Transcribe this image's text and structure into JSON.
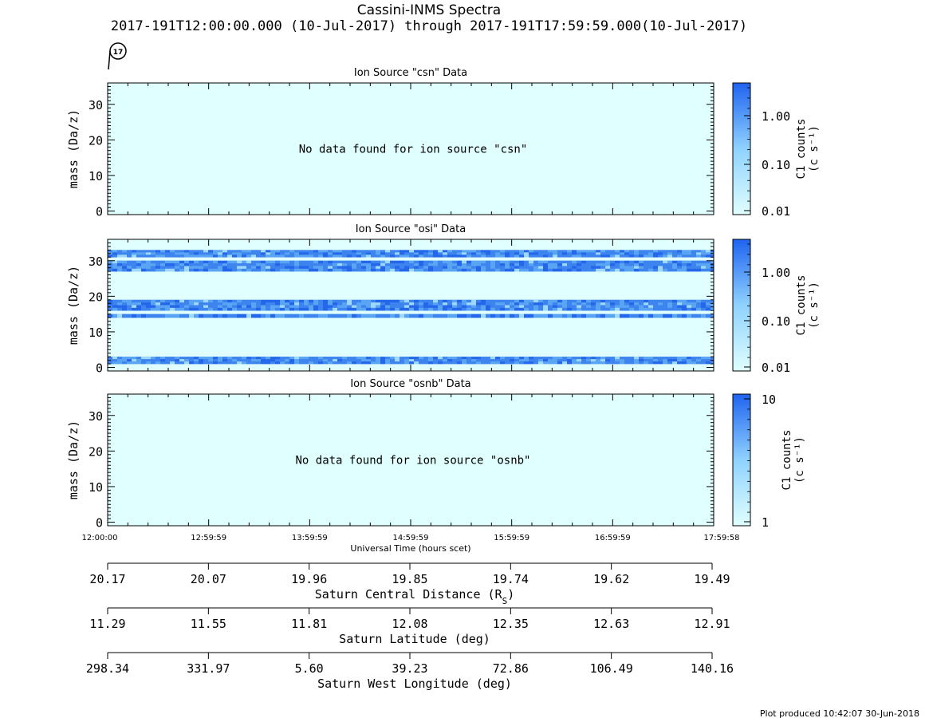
{
  "header": {
    "title": "Cassini-INMS Spectra",
    "subtitle": "2017-191T12:00:00.000 (10-Jul-2017) through 2017-191T17:59:59.000(10-Jul-2017)",
    "rev_badge": "17"
  },
  "chart_data": [
    {
      "type": "heatmap",
      "title": "Ion Source \"csn\" Data",
      "ylabel": "mass (Da/z)",
      "ylim": [
        -1,
        36
      ],
      "y_ticks": [
        "0",
        "10",
        "20",
        "30"
      ],
      "message": "No data found for ion source \"csn\"",
      "bands": [],
      "colorbar": {
        "label": "C1 counts",
        "unit": "(c s⁻¹)",
        "scale": "log",
        "ticks": [
          "1.00",
          "0.10",
          "0.01"
        ]
      }
    },
    {
      "type": "heatmap",
      "title": "Ion Source \"osi\" Data",
      "ylabel": "mass (Da/z)",
      "ylim": [
        -1,
        36
      ],
      "y_ticks": [
        "0",
        "10",
        "20",
        "30"
      ],
      "message": "",
      "bands": [
        [
          1,
          3
        ],
        [
          14,
          15
        ],
        [
          16,
          19
        ],
        [
          27,
          30
        ],
        [
          31,
          33
        ]
      ],
      "colorbar": {
        "label": "C1 counts",
        "unit": "(c s⁻¹)",
        "scale": "log",
        "ticks": [
          "1.00",
          "0.10",
          "0.01"
        ]
      }
    },
    {
      "type": "heatmap",
      "title": "Ion Source \"osnb\" Data",
      "ylabel": "mass (Da/z)",
      "ylim": [
        -1,
        36
      ],
      "y_ticks": [
        "0",
        "10",
        "20",
        "30"
      ],
      "message": "No data found for ion source \"osnb\"",
      "bands": [],
      "colorbar": {
        "label": "C1 counts",
        "unit": "(c s⁻¹)",
        "scale": "log",
        "ticks": [
          "10",
          "1"
        ]
      }
    }
  ],
  "time_axis": {
    "label": "Universal Time (hours scet)",
    "ticks": [
      "12:00:00",
      "12:59:59",
      "13:59:59",
      "14:59:59",
      "15:59:59",
      "16:59:59",
      "17:59:58"
    ]
  },
  "ephemeris": [
    {
      "label": "Saturn Central Distance (R",
      "label_sub": "S",
      "label_end": ")",
      "values": [
        "20.17",
        "20.07",
        "19.96",
        "19.85",
        "19.74",
        "19.62",
        "19.49"
      ]
    },
    {
      "label": "Saturn Latitude (deg)",
      "label_sub": "",
      "label_end": "",
      "values": [
        "11.29",
        "11.55",
        "11.81",
        "12.08",
        "12.35",
        "12.63",
        "12.91"
      ]
    },
    {
      "label": "Saturn West Longitude (deg)",
      "label_sub": "",
      "label_end": "",
      "values": [
        "298.34",
        "331.97",
        "5.60",
        "39.23",
        "72.86",
        "106.49",
        "140.16"
      ]
    }
  ],
  "footer": {
    "produced": "Plot produced 10:42:07 30-Jun-2018"
  },
  "colors": {
    "empty": "#e0ffff",
    "low": "#d6f6ff",
    "high": "#1f63f0",
    "axis": "#000000"
  }
}
